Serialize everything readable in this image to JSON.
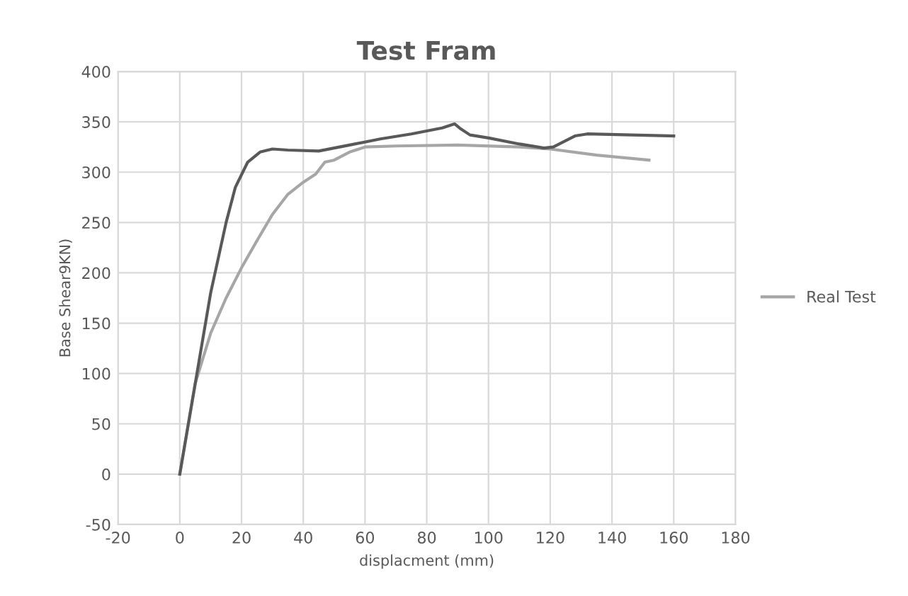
{
  "chart_data": {
    "type": "line",
    "title": "Test Fram",
    "xlabel": "displacment (mm)",
    "ylabel": "Base Shear9KN)",
    "xlim": [
      -20,
      180
    ],
    "xticks": [
      -20,
      0,
      20,
      40,
      60,
      80,
      100,
      120,
      140,
      160,
      180
    ],
    "ylim": [
      -50,
      400
    ],
    "yticks": [
      -50,
      0,
      50,
      100,
      150,
      200,
      250,
      300,
      350,
      400
    ],
    "grid": true,
    "legend": "right",
    "marker": "none",
    "line_style": "solid",
    "series": [
      {
        "name": "Real Test",
        "color": "#a6a6a6",
        "x": [
          0,
          5,
          10,
          15,
          20,
          25,
          30,
          35,
          40,
          44,
          47,
          50,
          55,
          60,
          70,
          90,
          110,
          120,
          135,
          152
        ],
        "values": [
          0,
          90,
          140,
          175,
          205,
          232,
          258,
          278,
          290,
          298,
          310,
          312,
          320,
          325,
          326,
          327,
          325,
          323,
          317,
          312
        ]
      },
      {
        "color": "#595959",
        "x": [
          0,
          5,
          10,
          15,
          18,
          22,
          26,
          30,
          35,
          45,
          55,
          65,
          75,
          85,
          89,
          91,
          94,
          100,
          110,
          118,
          121,
          128,
          132,
          160
        ],
        "values": [
          0,
          90,
          180,
          250,
          285,
          310,
          320,
          323,
          322,
          321,
          327,
          333,
          338,
          344,
          348,
          343,
          337,
          334,
          328,
          324,
          325,
          336,
          338,
          336
        ]
      }
    ]
  }
}
